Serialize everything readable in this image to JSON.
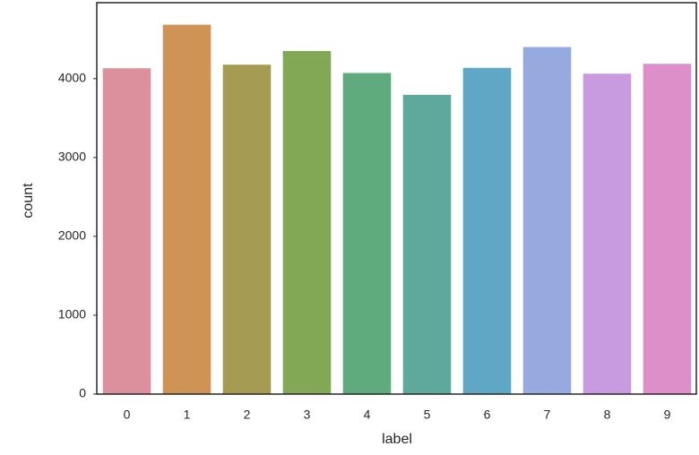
{
  "chart_data": {
    "type": "bar",
    "x_label": "label",
    "y_label": "count",
    "categories": [
      "0",
      "1",
      "2",
      "3",
      "4",
      "5",
      "6",
      "7",
      "8",
      "9"
    ],
    "values": [
      4132,
      4684,
      4177,
      4351,
      4072,
      3795,
      4137,
      4401,
      4063,
      4188
    ],
    "colors": [
      "#dc8f9c",
      "#cf9355",
      "#a59b52",
      "#82a855",
      "#5fab7e",
      "#5ea89c",
      "#5fa7c4",
      "#97aadf",
      "#c89be0",
      "#dd8fc9"
    ],
    "ylim": [
      0,
      4918
    ],
    "yticks": [
      0,
      1000,
      2000,
      3000,
      4000
    ]
  }
}
